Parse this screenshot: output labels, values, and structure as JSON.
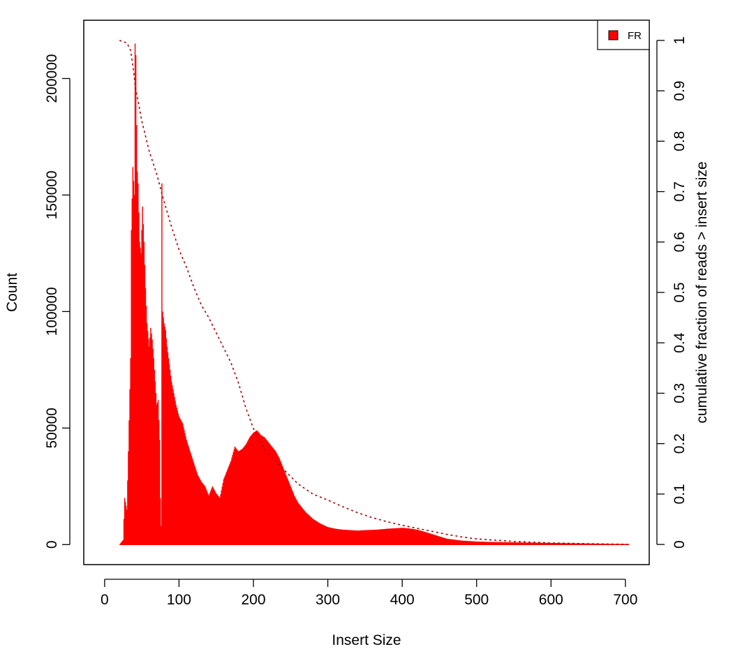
{
  "chart_data": {
    "type": "bar",
    "xlabel": "Insert Size",
    "ylabel": "Count",
    "y2label": "cumulative fraction of reads > insert size",
    "xlim": [
      -28,
      732
    ],
    "ylim": [
      -8600,
      225000
    ],
    "y2lim": [
      -0.04,
      1.04
    ],
    "x_ticks": [
      0,
      100,
      200,
      300,
      400,
      500,
      600,
      700
    ],
    "y_ticks": [
      0,
      50000,
      100000,
      150000,
      200000
    ],
    "y2_ticks": [
      0,
      0.1,
      0.2,
      0.3,
      0.4,
      0.5,
      0.6,
      0.7,
      0.8,
      0.9,
      1
    ],
    "legend": {
      "position": "top-right",
      "entries": [
        {
          "label": "FR",
          "color": "#ff0000"
        }
      ]
    },
    "series": [
      {
        "name": "FR",
        "color": "#ff0000",
        "x": [
          20,
          25,
          27,
          30,
          32,
          35,
          36,
          38,
          40,
          41,
          42,
          43,
          44,
          45,
          47,
          49,
          51,
          53,
          55,
          57,
          60,
          62,
          64,
          66,
          68,
          70,
          72,
          74,
          75,
          76,
          77,
          78,
          80,
          82,
          84,
          86,
          88,
          90,
          93,
          96,
          100,
          105,
          110,
          115,
          120,
          125,
          130,
          135,
          140,
          145,
          150,
          155,
          160,
          165,
          170,
          175,
          180,
          185,
          190,
          195,
          200,
          205,
          210,
          215,
          220,
          225,
          230,
          235,
          240,
          245,
          250,
          255,
          260,
          270,
          280,
          290,
          300,
          310,
          320,
          330,
          340,
          350,
          360,
          370,
          380,
          390,
          400,
          410,
          420,
          430,
          440,
          450,
          460,
          480,
          500,
          520,
          540,
          560,
          580,
          600,
          620,
          640,
          660,
          680,
          700,
          705
        ],
        "values": [
          0,
          2000,
          20000,
          15000,
          40000,
          80000,
          135000,
          162000,
          150000,
          215000,
          210000,
          180000,
          160000,
          155000,
          130000,
          125000,
          145000,
          130000,
          110000,
          95000,
          85000,
          93000,
          88000,
          80000,
          70000,
          60000,
          62000,
          45000,
          20000,
          8000,
          155000,
          100000,
          95000,
          92000,
          85000,
          80000,
          75000,
          70000,
          65000,
          60000,
          55000,
          52000,
          45000,
          40000,
          35000,
          30000,
          27000,
          25000,
          21000,
          25000,
          22000,
          20000,
          28000,
          32000,
          36000,
          42000,
          40000,
          41000,
          43000,
          46000,
          48000,
          49000,
          47000,
          46000,
          44000,
          42000,
          40000,
          37000,
          33000,
          29000,
          25000,
          21000,
          18000,
          14000,
          11000,
          9000,
          7500,
          6800,
          6400,
          6200,
          6000,
          6200,
          6300,
          6500,
          6800,
          7000,
          7200,
          6900,
          6400,
          5500,
          4500,
          3500,
          2500,
          1700,
          1300,
          1100,
          1000,
          900,
          800,
          700,
          600,
          500,
          400,
          300,
          250,
          0
        ]
      },
      {
        "name": "cumulative fraction",
        "color": "#a80000",
        "style": "dotted",
        "x": [
          20,
          30,
          35,
          38,
          42,
          45,
          50,
          60,
          70,
          80,
          90,
          100,
          110,
          120,
          130,
          140,
          150,
          160,
          170,
          180,
          190,
          200,
          210,
          220,
          230,
          240,
          250,
          260,
          270,
          280,
          300,
          320,
          340,
          360,
          380,
          400,
          420,
          440,
          460,
          480,
          500,
          550,
          600,
          650,
          700,
          705
        ],
        "values": [
          1.0,
          0.995,
          0.98,
          0.95,
          0.9,
          0.88,
          0.84,
          0.78,
          0.735,
          0.68,
          0.63,
          0.585,
          0.55,
          0.51,
          0.475,
          0.45,
          0.42,
          0.39,
          0.36,
          0.32,
          0.27,
          0.23,
          0.2,
          0.18,
          0.165,
          0.15,
          0.135,
          0.12,
          0.11,
          0.1,
          0.088,
          0.075,
          0.063,
          0.053,
          0.045,
          0.038,
          0.032,
          0.026,
          0.02,
          0.015,
          0.011,
          0.006,
          0.003,
          0.0015,
          0.0003,
          0.0
        ]
      }
    ]
  }
}
